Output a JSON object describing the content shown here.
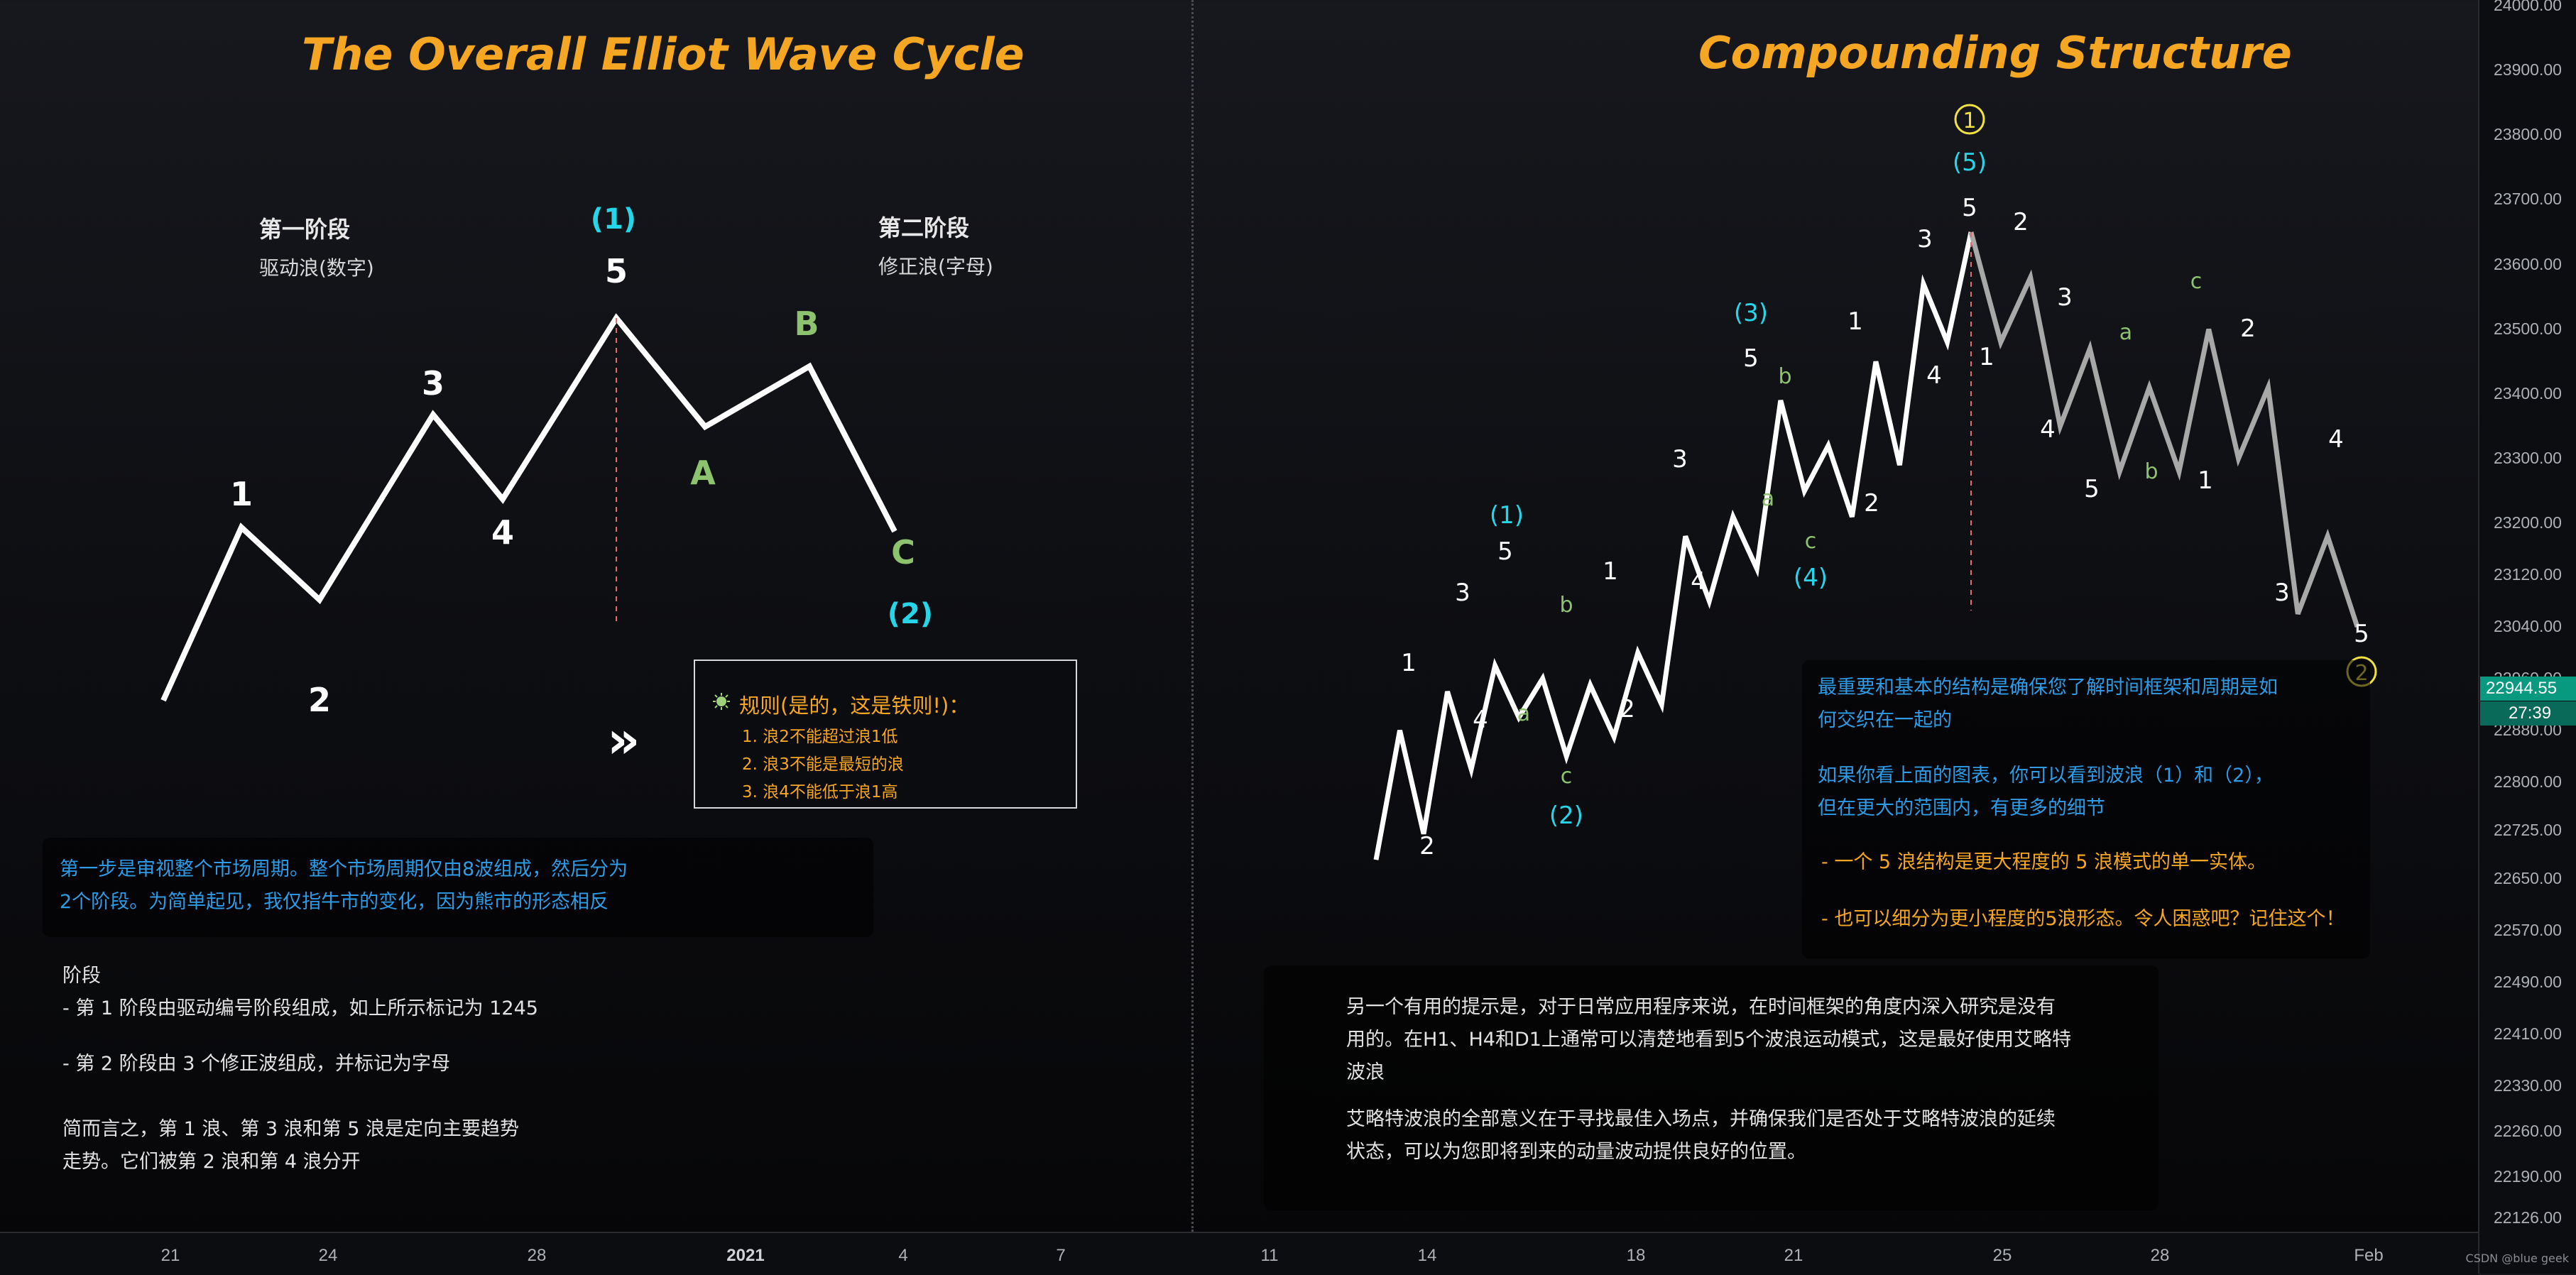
{
  "titles": {
    "left": "The Overall Elliot Wave Cycle",
    "right": "Compounding Structure"
  },
  "phase_one": {
    "title": "第一阶段",
    "subtitle": "驱动浪(数字)"
  },
  "phase_two": {
    "title": "第二阶段",
    "subtitle": "修正浪(字母)"
  },
  "rules_box": {
    "title": "规则(是的，这是铁则!)：",
    "items": [
      "1. 浪2不能超过浪1低",
      "2. 浪3不能是最短的浪",
      "3. 浪4不能低于浪1高"
    ],
    "icon": "sun-icon"
  },
  "arrows_icon": "double-chevron-right-icon",
  "left_notes": {
    "intro_line1": "第一步是审视整个市场周期。整个市场周期仅由8波组成，然后分为",
    "intro_line2": "2个阶段。为简单起见，我仅指牛市的变化，因为熊市的形态相反",
    "stage_heading": "阶段",
    "stage1": "- 第 1 阶段由驱动编号阶段组成，如上所示标记为 1245",
    "stage2": "- 第 2 阶段由 3 个修正波组成，并标记为字母",
    "summary_line1": "简而言之，第 1 浪、第 3 浪和第 5 浪是定向主要趋势",
    "summary_line2": "走势。它们被第 2 浪和第 4 浪分开"
  },
  "right_notes": {
    "p1_line1": "最重要和基本的结构是确保您了解时间框架和周期是如",
    "p1_line2": "何交织在一起的",
    "p2_line1": "如果你看上面的图表，你可以看到波浪（1）和（2），",
    "p2_line2": "但在更大的范围内，有更多的细节",
    "p3": "- 一个 5 浪结构是更大程度的 5 浪模式的单一实体。",
    "p4": "- 也可以细分为更小程度的5浪形态。令人困惑吧？记住这个！"
  },
  "bottom_notes": {
    "p1_line1": "另一个有用的提示是，对于日常应用程序来说，在时间框架的角度内深入研究是没有",
    "p1_line2": "用的。在H1、H4和D1上通常可以清楚地看到5个波浪运动模式，这是最好使用艾略特",
    "p1_line3": "波浪",
    "p2_line1": "艾略特波浪的全部意义在于寻找最佳入场点，并确保我们是否处于艾略特波浪的延续",
    "p2_line2": "状态，可以为您即将到来的动量波动提供良好的位置。"
  },
  "axis": {
    "price_ticks": [
      "24000.00",
      "23900.00",
      "23800.00",
      "23700.00",
      "23600.00",
      "23500.00",
      "23400.00",
      "23300.00",
      "23200.00",
      "23120.00",
      "23040.00",
      "22960.00",
      "22880.00",
      "22800.00",
      "22725.00",
      "22650.00",
      "22570.00",
      "22490.00",
      "22410.00",
      "22330.00",
      "22260.00",
      "22190.00",
      "22126.00"
    ],
    "current_price": "22944.55",
    "countdown": "27:39",
    "time_ticks": [
      "21",
      "24",
      "28",
      "2021",
      "4",
      "7",
      "11",
      "14",
      "18",
      "21",
      "25",
      "28",
      "Feb"
    ],
    "watermark": "CSDN @blue geek"
  },
  "colors": {
    "accent": "#f5a623",
    "cyan": "#26d5e8",
    "green": "#8dc26f",
    "wave_white": "#ffffff",
    "wave_gray": "#a8a8a8",
    "price_badge": "#089981"
  },
  "chart_data": {
    "type": "line",
    "title": "The Overall Elliot Wave Cycle",
    "left_pattern": {
      "labels": [
        "1",
        "2",
        "3",
        "4",
        "5",
        "A",
        "B",
        "C"
      ],
      "degree_labels": [
        "(1)",
        "(2)"
      ],
      "series": [
        {
          "name": "impulse",
          "points": [
            0.05,
            0.48,
            0.3,
            0.76,
            0.55,
            1.0,
            0.73,
            0.88,
            0.47
          ]
        }
      ]
    },
    "right_pattern": {
      "title": "Compounding Structure",
      "ylim": [
        22126,
        24000
      ],
      "impulse_points": [
        22680,
        22880,
        22720,
        22940,
        22820,
        22980,
        22900,
        22960,
        22840,
        22950,
        22870,
        23000,
        22920,
        23180,
        23080,
        23210,
        23130,
        23390,
        23250,
        23320,
        23210,
        23450,
        23290,
        23570,
        23480,
        23650
      ],
      "correction_points": [
        23650,
        23480,
        23580,
        23350,
        23470,
        23280,
        23410,
        23280,
        23500,
        23300,
        23410,
        23060,
        23180,
        23040
      ],
      "impulse_labels": [
        "1",
        "2",
        "3",
        "4",
        "5",
        "a",
        "b",
        "c",
        "1",
        "2",
        "3",
        "4",
        "5",
        "a",
        "b",
        "c",
        "1",
        "2",
        "3",
        "4",
        "5"
      ],
      "correction_labels": [
        "1",
        "2",
        "3",
        "4",
        "5",
        "a",
        "b",
        "c",
        "1",
        "2",
        "3",
        "4",
        "5"
      ],
      "degree_labels": [
        "(1)",
        "(2)",
        "(3)",
        "(4)",
        "(5)"
      ],
      "circled_labels": [
        "1",
        "2"
      ]
    }
  }
}
